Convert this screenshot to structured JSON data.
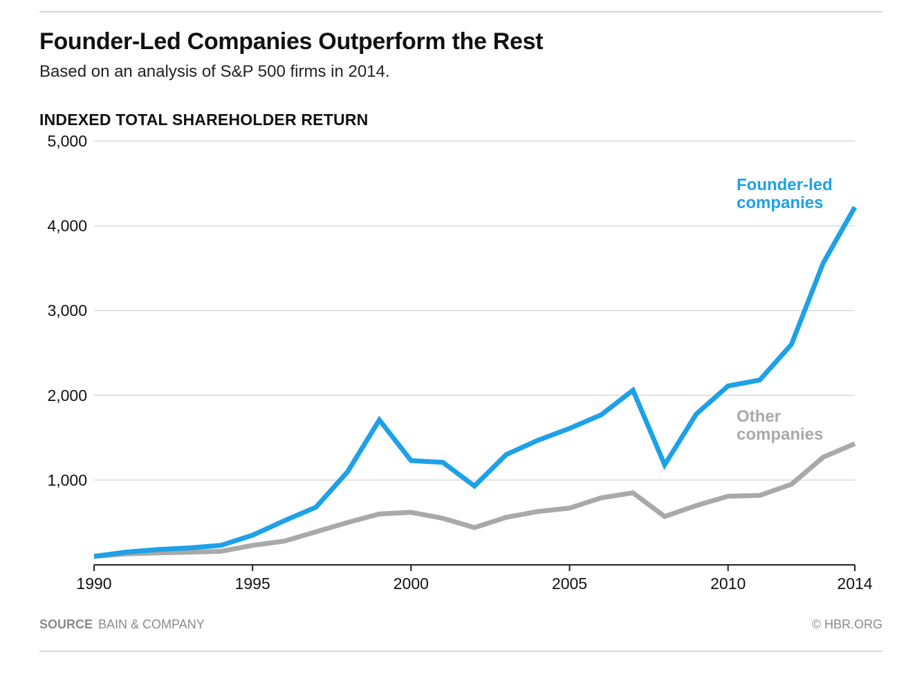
{
  "header": {
    "title": "Founder-Led Companies Outperform the Rest",
    "subtitle": "Based on an analysis of S&P 500 firms in 2014."
  },
  "footer": {
    "source_key": "SOURCE",
    "source_value": "BAIN & COMPANY",
    "credit": "© HBR.ORG"
  },
  "colors": {
    "founder": "#1da1e8",
    "other": "#a9a9a9",
    "grid": "#d9d9d9",
    "axis": "#222222"
  },
  "chart_data": {
    "type": "line",
    "title": "Founder-Led Companies Outperform the Rest",
    "subtitle": "Based on an analysis of S&P 500 firms in 2014.",
    "ylabel": "INDEXED TOTAL SHAREHOLDER RETURN",
    "xlabel": "",
    "xlim": [
      1990,
      2014
    ],
    "ylim": [
      0,
      5000
    ],
    "x_ticks": [
      1990,
      1995,
      2000,
      2005,
      2010,
      2014
    ],
    "y_ticks": [
      1000,
      2000,
      3000,
      4000,
      5000
    ],
    "y_tick_labels": [
      "1,000",
      "2,000",
      "3,000",
      "4,000",
      "5,000"
    ],
    "grid": true,
    "legend": "direct labels",
    "x": [
      1990,
      1991,
      1992,
      1993,
      1994,
      1995,
      1996,
      1997,
      1998,
      1999,
      2000,
      2001,
      2002,
      2003,
      2004,
      2005,
      2006,
      2007,
      2008,
      2009,
      2010,
      2011,
      2012,
      2013,
      2014
    ],
    "series": [
      {
        "name": "Founder-led companies",
        "label_lines": [
          "Founder-led",
          "companies"
        ],
        "values": [
          100,
          150,
          180,
          200,
          230,
          350,
          520,
          680,
          1100,
          1710,
          1230,
          1210,
          930,
          1300,
          1470,
          1610,
          1770,
          2060,
          1180,
          1780,
          2110,
          2180,
          2600,
          3560,
          4220
        ]
      },
      {
        "name": "Other companies",
        "label_lines": [
          "Other",
          "companies"
        ],
        "values": [
          100,
          130,
          140,
          150,
          160,
          230,
          280,
          390,
          500,
          600,
          620,
          550,
          440,
          560,
          630,
          670,
          790,
          850,
          570,
          700,
          810,
          820,
          950,
          1270,
          1430
        ]
      }
    ]
  }
}
